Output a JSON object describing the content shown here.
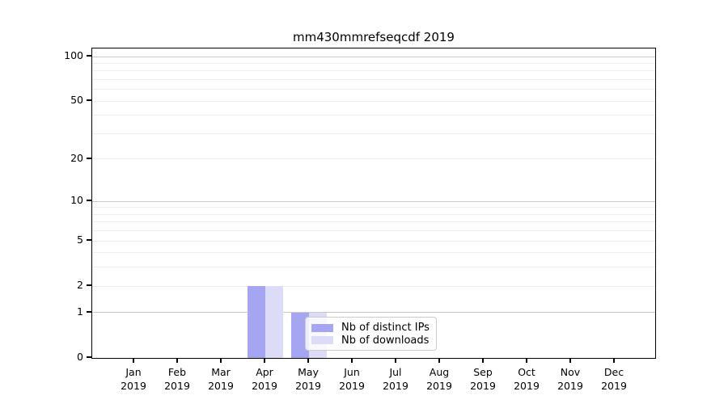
{
  "chart_data": {
    "type": "bar",
    "title": "mm430mmrefseqcdf 2019",
    "categories": [
      "Jan",
      "Feb",
      "Mar",
      "Apr",
      "May",
      "Jun",
      "Jul",
      "Aug",
      "Sep",
      "Oct",
      "Nov",
      "Dec"
    ],
    "x_tick_year_line": "2019",
    "series": [
      {
        "name": "Nb of distinct IPs",
        "color": "#a5a5f2",
        "values": [
          0,
          0,
          0,
          2,
          1,
          0,
          0,
          0,
          0,
          0,
          0,
          0
        ]
      },
      {
        "name": "Nb of downloads",
        "color": "#dcdcf9",
        "values": [
          0,
          0,
          0,
          2,
          1,
          0,
          0,
          0,
          0,
          0,
          0,
          0
        ]
      }
    ],
    "yscale": "log1p",
    "ylim": [
      0,
      100
    ],
    "y_ticks": [
      0,
      1,
      2,
      5,
      10,
      20,
      50,
      100
    ],
    "y_gridlines_strong": [
      1,
      10,
      100
    ],
    "y_gridlines_faint": [
      2,
      3,
      4,
      5,
      6,
      7,
      8,
      9,
      20,
      30,
      40,
      50,
      60,
      70,
      80,
      90
    ],
    "grid": "horizontal-only",
    "legend_position": "inside lower-center",
    "colors": {
      "strong_grid": "#c8c8c8",
      "faint_grid": "#ededed",
      "spine": "#000000",
      "text": "#000000",
      "background": "#ffffff"
    }
  }
}
